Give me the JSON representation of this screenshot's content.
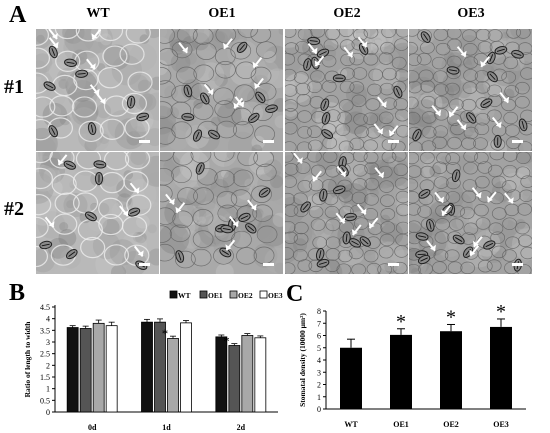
{
  "panel_a": {
    "letter": "A",
    "columns": [
      "WT",
      "OE1",
      "OE2",
      "OE3"
    ],
    "rows": [
      "#1",
      "#2"
    ],
    "images": [
      {
        "id": "r1-wt",
        "arrows": 6,
        "stomata": 8
      },
      {
        "id": "r1-oe1",
        "arrows": 7,
        "stomata": 9
      },
      {
        "id": "r1-oe2",
        "arrows": 7,
        "stomata": 10
      },
      {
        "id": "r1-oe3",
        "arrows": 7,
        "stomata": 11
      },
      {
        "id": "r2-wt",
        "arrows": 5,
        "stomata": 8
      },
      {
        "id": "r2-oe1",
        "arrows": 5,
        "stomata": 9
      },
      {
        "id": "r2-oe2",
        "arrows": 8,
        "stomata": 11
      },
      {
        "id": "r2-oe3",
        "arrows": 8,
        "stomata": 12
      }
    ]
  },
  "chart_data": [
    {
      "panel": "B",
      "type": "bar",
      "categories": [
        "0d",
        "1d",
        "2d"
      ],
      "series": [
        {
          "name": "WT",
          "values": [
            3.62,
            3.85,
            3.22
          ],
          "errors": [
            0.08,
            0.12,
            0.08
          ],
          "color": "#111111"
        },
        {
          "name": "OE1",
          "values": [
            3.58,
            3.85,
            2.85
          ],
          "errors": [
            0.1,
            0.14,
            0.08
          ],
          "color": "#555555"
        },
        {
          "name": "OE2",
          "values": [
            3.8,
            3.15,
            3.28
          ],
          "errors": [
            0.14,
            0.1,
            0.08
          ],
          "color": "#a8a8a8"
        },
        {
          "name": "OE3",
          "values": [
            3.7,
            3.82,
            3.18
          ],
          "errors": [
            0.15,
            0.1,
            0.08
          ],
          "color": "#ffffff"
        }
      ],
      "significance": [
        {
          "category": "1d",
          "series": "OE2",
          "label": "*"
        },
        {
          "category": "2d",
          "series": "OE1",
          "label": "*"
        }
      ],
      "xlabel": "",
      "ylabel": "Ratio of length to width",
      "ylim": [
        0,
        4.5
      ],
      "yticks": [
        "0",
        "0.5",
        "1",
        "1.5",
        "2",
        "2.5",
        "3",
        "3.5",
        "4",
        "4.5"
      ],
      "legend_placement": "top-right"
    },
    {
      "panel": "C",
      "type": "bar",
      "categories": [
        "WT",
        "OE1",
        "OE2",
        "OE3"
      ],
      "values": [
        5.0,
        6.05,
        6.35,
        6.7
      ],
      "errors": [
        0.7,
        0.5,
        0.55,
        0.65
      ],
      "significance": [
        "",
        "*",
        "*",
        "*"
      ],
      "color": "#000000",
      "xlabel": "",
      "ylabel": "Stomatal density (10000 μm²)",
      "ylim": [
        0,
        8
      ],
      "yticks": [
        "0",
        "1",
        "2",
        "3",
        "4",
        "5",
        "6",
        "7",
        "8"
      ]
    }
  ]
}
